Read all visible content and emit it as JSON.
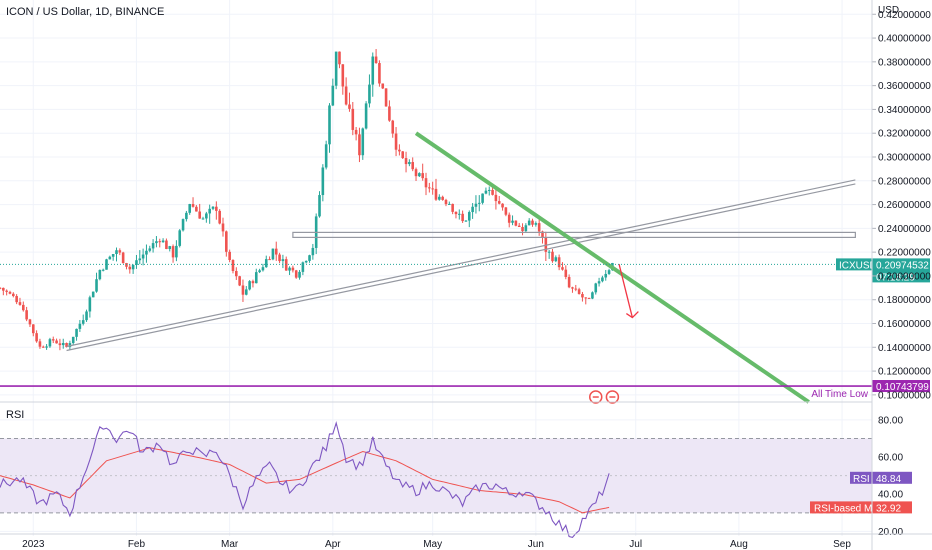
{
  "chart_data": [
    {
      "type": "candlestick",
      "title": "ICON / US Dollar, 1D, BINANCE",
      "currency": "USD",
      "x_ticks": [
        "2023",
        "Feb",
        "Mar",
        "Apr",
        "May",
        "Jun",
        "Jul",
        "Aug",
        "Sep"
      ],
      "y_ticks": [
        "0.42000000",
        "0.40000000",
        "0.38000000",
        "0.36000000",
        "0.34000000",
        "0.32000000",
        "0.30000000",
        "0.28000000",
        "0.26000000",
        "0.24000000",
        "0.22000000",
        "0.20000000",
        "0.18000000",
        "0.16000000",
        "0.14000000",
        "0.12000000",
        "0.10000000"
      ],
      "ylim": [
        0.094,
        0.432
      ],
      "colors": {
        "up": "#26a69a",
        "down": "#ef5350",
        "support": "#9598a1",
        "trend": "#66bb6a",
        "ath_line": "#9c27b0",
        "arrow": "#f23645"
      },
      "price_key": [
        [
          "2022-12-22",
          0.19
        ],
        [
          "2022-12-28",
          0.178
        ],
        [
          "2023-01-03",
          0.14
        ],
        [
          "2023-01-07",
          0.146
        ],
        [
          "2023-01-11",
          0.14
        ],
        [
          "2023-01-16",
          0.165
        ],
        [
          "2023-01-21",
          0.205
        ],
        [
          "2023-01-26",
          0.222
        ],
        [
          "2023-01-30",
          0.206
        ],
        [
          "2023-02-03",
          0.218
        ],
        [
          "2023-02-08",
          0.232
        ],
        [
          "2023-02-12",
          0.218
        ],
        [
          "2023-02-17",
          0.262
        ],
        [
          "2023-02-21",
          0.248
        ],
        [
          "2023-02-25",
          0.258
        ],
        [
          "2023-03-01",
          0.21
        ],
        [
          "2023-03-05",
          0.185
        ],
        [
          "2023-03-10",
          0.205
        ],
        [
          "2023-03-14",
          0.222
        ],
        [
          "2023-03-18",
          0.208
        ],
        [
          "2023-03-21",
          0.202
        ],
        [
          "2023-03-26",
          0.225
        ],
        [
          "2023-03-29",
          0.29
        ],
        [
          "2023-04-02",
          0.39
        ],
        [
          "2023-04-05",
          0.345
        ],
        [
          "2023-04-09",
          0.305
        ],
        [
          "2023-04-13",
          0.388
        ],
        [
          "2023-04-17",
          0.345
        ],
        [
          "2023-04-21",
          0.3
        ],
        [
          "2023-04-26",
          0.285
        ],
        [
          "2023-05-01",
          0.27
        ],
        [
          "2023-05-06",
          0.262
        ],
        [
          "2023-05-10",
          0.245
        ],
        [
          "2023-05-14",
          0.26
        ],
        [
          "2023-05-19",
          0.272
        ],
        [
          "2023-05-23",
          0.25
        ],
        [
          "2023-05-28",
          0.24
        ],
        [
          "2023-06-01",
          0.245
        ],
        [
          "2023-06-04",
          0.222
        ],
        [
          "2023-06-08",
          0.21
        ],
        [
          "2023-06-11",
          0.19
        ],
        [
          "2023-06-14",
          0.184
        ],
        [
          "2023-06-17",
          0.178
        ],
        [
          "2023-06-20",
          0.197
        ],
        [
          "2023-06-24",
          0.21
        ]
      ],
      "support_line": {
        "start": [
          "2023-01-11",
          0.139
        ],
        "end": [
          "2023-09-05",
          0.279
        ]
      },
      "horizontal_zone": {
        "start": "2023-03-20",
        "end": "2023-09-05",
        "value": 0.2345
      },
      "trend_line": {
        "start": [
          "2023-04-26",
          0.32
        ],
        "end": [
          "2023-08-22",
          0.094
        ]
      },
      "arrow": {
        "start": [
          "2023-06-26",
          0.21
        ],
        "end": [
          "2023-06-30",
          0.165
        ]
      },
      "ath_level": 0.10743799,
      "ath_label": "All Time Low",
      "current_price": {
        "symbol": "ICXUSD",
        "value": "0.20974532",
        "countdown": "07:18:29",
        "raw": 0.2097
      }
    },
    {
      "type": "line",
      "title": "RSI",
      "y_ticks": [
        "80.00",
        "60.00",
        "40.00",
        "20.00"
      ],
      "ylim": [
        10,
        88
      ],
      "bands": [
        70,
        50,
        30
      ],
      "rsi_key": [
        [
          "2022-12-22",
          45
        ],
        [
          "2022-12-28",
          48
        ],
        [
          "2023-01-03",
          35
        ],
        [
          "2023-01-08",
          40
        ],
        [
          "2023-01-12",
          30
        ],
        [
          "2023-01-17",
          55
        ],
        [
          "2023-01-22",
          78
        ],
        [
          "2023-01-26",
          70
        ],
        [
          "2023-01-30",
          75
        ],
        [
          "2023-02-03",
          62
        ],
        [
          "2023-02-08",
          68
        ],
        [
          "2023-02-12",
          55
        ],
        [
          "2023-02-17",
          65
        ],
        [
          "2023-02-21",
          60
        ],
        [
          "2023-02-25",
          64
        ],
        [
          "2023-03-01",
          50
        ],
        [
          "2023-03-05",
          35
        ],
        [
          "2023-03-09",
          48
        ],
        [
          "2023-03-13",
          55
        ],
        [
          "2023-03-17",
          45
        ],
        [
          "2023-03-21",
          42
        ],
        [
          "2023-03-26",
          55
        ],
        [
          "2023-03-30",
          65
        ],
        [
          "2023-04-02",
          80
        ],
        [
          "2023-04-05",
          60
        ],
        [
          "2023-04-09",
          55
        ],
        [
          "2023-04-13",
          68
        ],
        [
          "2023-04-17",
          55
        ],
        [
          "2023-04-21",
          45
        ],
        [
          "2023-04-26",
          42
        ],
        [
          "2023-05-01",
          46
        ],
        [
          "2023-05-06",
          40
        ],
        [
          "2023-05-10",
          35
        ],
        [
          "2023-05-15",
          44
        ],
        [
          "2023-05-20",
          45
        ],
        [
          "2023-05-24",
          40
        ],
        [
          "2023-05-28",
          42
        ],
        [
          "2023-06-01",
          36
        ],
        [
          "2023-06-05",
          30
        ],
        [
          "2023-06-09",
          22
        ],
        [
          "2023-06-12",
          18
        ],
        [
          "2023-06-15",
          26
        ],
        [
          "2023-06-19",
          35
        ],
        [
          "2023-06-23",
          48.84
        ]
      ],
      "ma_key": [
        [
          "2022-12-22",
          50
        ],
        [
          "2023-01-01",
          45
        ],
        [
          "2023-01-12",
          38
        ],
        [
          "2023-01-23",
          58
        ],
        [
          "2023-02-05",
          65
        ],
        [
          "2023-02-19",
          60
        ],
        [
          "2023-03-01",
          56
        ],
        [
          "2023-03-12",
          46
        ],
        [
          "2023-03-22",
          48
        ],
        [
          "2023-04-01",
          56
        ],
        [
          "2023-04-10",
          63
        ],
        [
          "2023-04-20",
          58
        ],
        [
          "2023-05-01",
          48
        ],
        [
          "2023-05-15",
          42
        ],
        [
          "2023-05-28",
          40
        ],
        [
          "2023-06-08",
          36
        ],
        [
          "2023-06-15",
          30
        ],
        [
          "2023-06-23",
          32.92
        ]
      ],
      "colors": {
        "rsi": "#7e57c2",
        "ma": "#ef5350",
        "band_fill": "#ede7f6"
      },
      "rsi_label": "RSI",
      "rsi_value": "48.84",
      "ma_label": "RSI-based MA",
      "ma_value": "32.92"
    }
  ]
}
